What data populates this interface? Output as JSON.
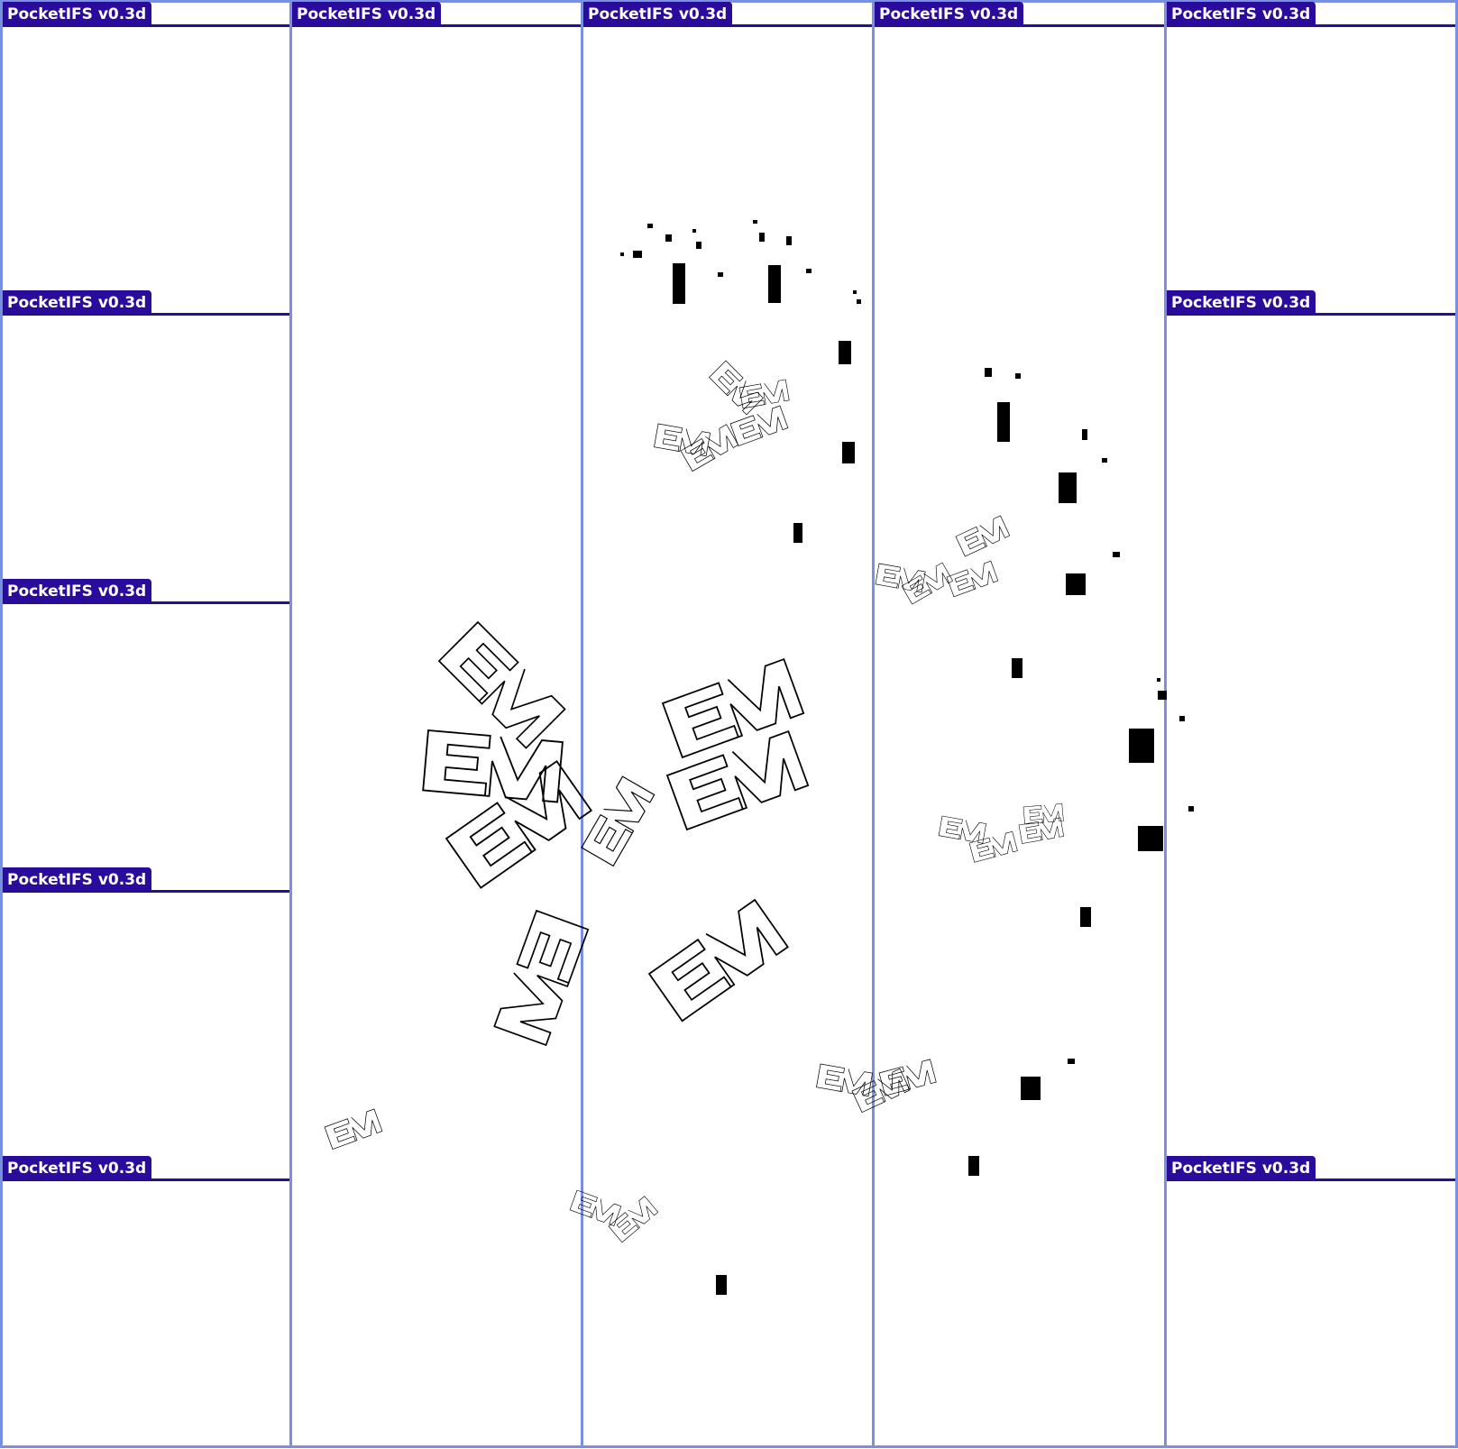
{
  "app": {
    "title": "PocketIFS v0.3d",
    "accent_color": "#2a0c9c",
    "frame_color": "#7b8fe0",
    "background_color": "#ffffff"
  },
  "windows": [
    {
      "label": "PocketIFS v0.3d"
    },
    {
      "label": "PocketIFS v0.3d"
    },
    {
      "label": "PocketIFS v0.3d"
    },
    {
      "label": "PocketIFS v0.3d"
    },
    {
      "label": "PocketIFS v0.3d"
    },
    {
      "label": "PocketIFS v0.3d"
    },
    {
      "label": "PocketIFS v0.3d"
    },
    {
      "label": "PocketIFS v0.3d"
    },
    {
      "label": "PocketIFS v0.3d"
    },
    {
      "label": "PocketIFS v0.3d"
    },
    {
      "label": "PocketIFS v0.3d"
    },
    {
      "label": "PocketIFS v0.3d"
    }
  ]
}
